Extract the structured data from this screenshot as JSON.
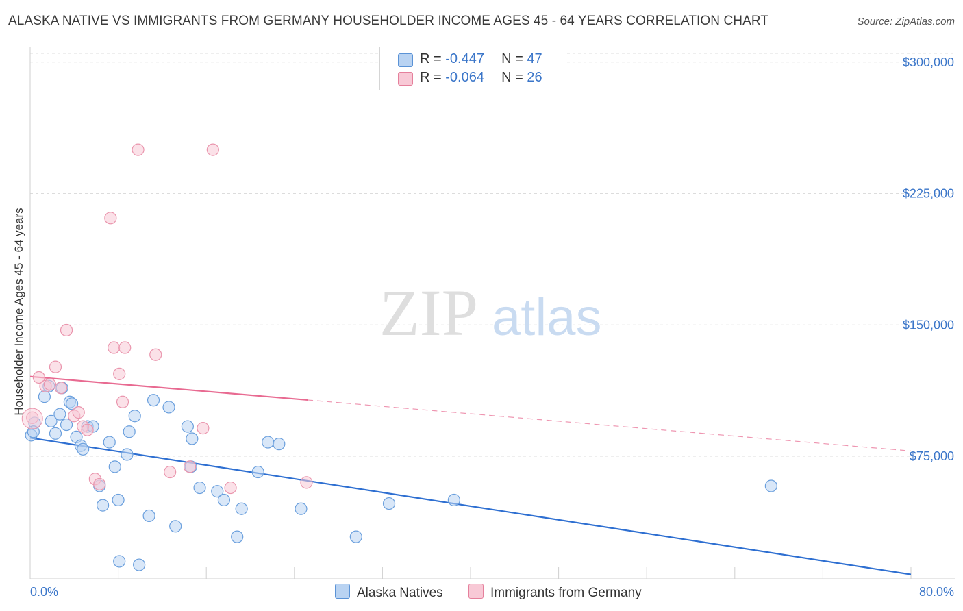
{
  "title": "ALASKA NATIVE VS IMMIGRANTS FROM GERMANY HOUSEHOLDER INCOME AGES 45 - 64 YEARS CORRELATION CHART",
  "source": "Source: ZipAtlas.com",
  "watermark": {
    "zip": "ZIP",
    "atlas": "atlas"
  },
  "legend": {
    "rows": [
      {
        "r_label": "R = ",
        "r_value": "-0.447",
        "n_label": "N = ",
        "n_value": "47",
        "color": "#b9d3f2",
        "border": "#5b93d6"
      },
      {
        "r_label": "R = ",
        "r_value": "-0.064",
        "n_label": "N = ",
        "n_value": "26",
        "color": "#f8c9d6",
        "border": "#e5809c"
      }
    ]
  },
  "bottom_legend": {
    "series1": "Alaska Natives",
    "series2": "Immigrants from Germany"
  },
  "chart_data": {
    "type": "scatter",
    "title": "ALASKA NATIVE VS IMMIGRANTS FROM GERMANY HOUSEHOLDER INCOME AGES 45 - 64 YEARS CORRELATION CHART",
    "xlabel": "",
    "ylabel": "Householder Income Ages 45 - 64 years",
    "xlim": [
      0,
      80
    ],
    "ylim": [
      5000,
      305000
    ],
    "x_tick_labels": [
      "0.0%",
      "80.0%"
    ],
    "y_ticks": [
      75000,
      150000,
      225000,
      300000
    ],
    "y_tick_labels": [
      "$75,000",
      "$150,000",
      "$225,000",
      "$300,000"
    ],
    "grid": true,
    "series": [
      {
        "name": "Alaska Natives",
        "color": "#7aa9e3",
        "trend": {
          "x0": 0,
          "y0": 85500,
          "x1": 80,
          "y1": 7500,
          "dashed_from": null
        },
        "points": [
          [
            0.1,
            87000
          ],
          [
            0.4,
            94000
          ],
          [
            1.3,
            109000
          ],
          [
            1.7,
            115000
          ],
          [
            1.9,
            95000
          ],
          [
            2.3,
            88000
          ],
          [
            2.7,
            99000
          ],
          [
            2.9,
            114000
          ],
          [
            3.3,
            93000
          ],
          [
            3.6,
            106000
          ],
          [
            3.8,
            105000
          ],
          [
            4.2,
            86000
          ],
          [
            4.6,
            81000
          ],
          [
            4.8,
            79000
          ],
          [
            5.2,
            92000
          ],
          [
            5.7,
            92000
          ],
          [
            6.3,
            58000
          ],
          [
            6.6,
            47000
          ],
          [
            7.2,
            83000
          ],
          [
            7.7,
            69000
          ],
          [
            8.0,
            50000
          ],
          [
            8.1,
            15000
          ],
          [
            8.8,
            76000
          ],
          [
            9.0,
            89000
          ],
          [
            9.5,
            98000
          ],
          [
            9.9,
            13000
          ],
          [
            10.8,
            41000
          ],
          [
            11.2,
            107000
          ],
          [
            12.6,
            103000
          ],
          [
            13.2,
            35000
          ],
          [
            14.3,
            92000
          ],
          [
            14.7,
            85000
          ],
          [
            14.6,
            69000
          ],
          [
            15.4,
            57000
          ],
          [
            17.0,
            55000
          ],
          [
            17.6,
            50000
          ],
          [
            18.8,
            29000
          ],
          [
            19.2,
            45000
          ],
          [
            20.7,
            66000
          ],
          [
            21.6,
            83000
          ],
          [
            22.6,
            82000
          ],
          [
            24.6,
            45000
          ],
          [
            29.6,
            29000
          ],
          [
            32.6,
            48000
          ],
          [
            38.5,
            50000
          ],
          [
            67.3,
            58000
          ],
          [
            0.3,
            89000
          ]
        ]
      },
      {
        "name": "Immigrants from Germany",
        "color": "#f2a7bd",
        "trend": {
          "x0": 0,
          "y0": 120500,
          "x1": 80,
          "y1": 78000,
          "dashed_from": 25.2
        },
        "points": [
          [
            0.2,
            97000
          ],
          [
            0.8,
            120000
          ],
          [
            1.4,
            115000
          ],
          [
            1.8,
            116000
          ],
          [
            2.3,
            126000
          ],
          [
            2.8,
            114000
          ],
          [
            3.3,
            147000
          ],
          [
            4.0,
            98000
          ],
          [
            4.4,
            100000
          ],
          [
            4.8,
            92000
          ],
          [
            5.2,
            90000
          ],
          [
            5.9,
            62000
          ],
          [
            6.3,
            59000
          ],
          [
            7.3,
            211000
          ],
          [
            7.6,
            137000
          ],
          [
            8.1,
            122000
          ],
          [
            8.4,
            106000
          ],
          [
            8.6,
            137000
          ],
          [
            9.8,
            250000
          ],
          [
            11.4,
            133000
          ],
          [
            12.7,
            66000
          ],
          [
            14.5,
            69000
          ],
          [
            15.7,
            91000
          ],
          [
            16.6,
            250000
          ],
          [
            18.2,
            57000
          ],
          [
            25.1,
            60000
          ]
        ]
      }
    ]
  }
}
